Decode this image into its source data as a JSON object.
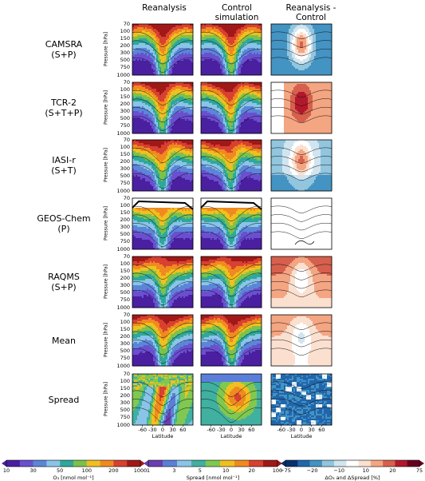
{
  "chart_data": {
    "type": "heatmap",
    "columns": [
      "Reanalysis",
      "Control\nsimulation",
      "Reanalysis -\nControl"
    ],
    "rows": [
      {
        "label": "CAMSRA",
        "sub": "(S+P)"
      },
      {
        "label": "TCR-2",
        "sub": "(S+T+P)"
      },
      {
        "label": "IASI-r",
        "sub": "(S+T)"
      },
      {
        "label": "GEOS-Chem",
        "sub": "(P)"
      },
      {
        "label": "RAQMS",
        "sub": "(S+P)"
      },
      {
        "label": "Mean",
        "sub": ""
      },
      {
        "label": "Spread",
        "sub": ""
      }
    ],
    "ylabel": "Pressure [hPa]",
    "y_ticks": [
      "70",
      "100",
      "150",
      "200",
      "300",
      "500",
      "750",
      "1000"
    ],
    "xlabel": "Latitude",
    "x_ticks": [
      "-60",
      "-30",
      "0",
      "30",
      "60"
    ],
    "colorbars": [
      {
        "label": "O₃ [nmol mol⁻¹]",
        "ticks": [
          "10",
          "30",
          "50",
          "100",
          "200",
          "1000"
        ]
      },
      {
        "label": "Spread [nmol mol⁻¹]",
        "ticks": [
          "1",
          "3",
          "5",
          "10",
          "20",
          "100"
        ]
      },
      {
        "label": "ΔO₃ and ΔSpread [%]",
        "ticks": [
          "−75",
          "−20",
          "−10",
          "10",
          "20",
          "75"
        ]
      }
    ]
  },
  "palettes": {
    "o3": [
      "#4a1fa0",
      "#6a4fd0",
      "#5b86d8",
      "#8ac4e8",
      "#2ea89a",
      "#7cc24a",
      "#f0c020",
      "#f08a20",
      "#d84030",
      "#a01818"
    ],
    "spread": [
      "#6a3fb0",
      "#5b7fd8",
      "#8ac4e8",
      "#40b0a0",
      "#80c850",
      "#f0c020",
      "#f08a20",
      "#d84030",
      "#a01818"
    ],
    "diff": [
      "#08306b",
      "#2166ac",
      "#4393c3",
      "#92c5de",
      "#d1e5f0",
      "#ffffff",
      "#fbe0d0",
      "#f4a582",
      "#d6604d",
      "#b2182b",
      "#67001f"
    ]
  }
}
